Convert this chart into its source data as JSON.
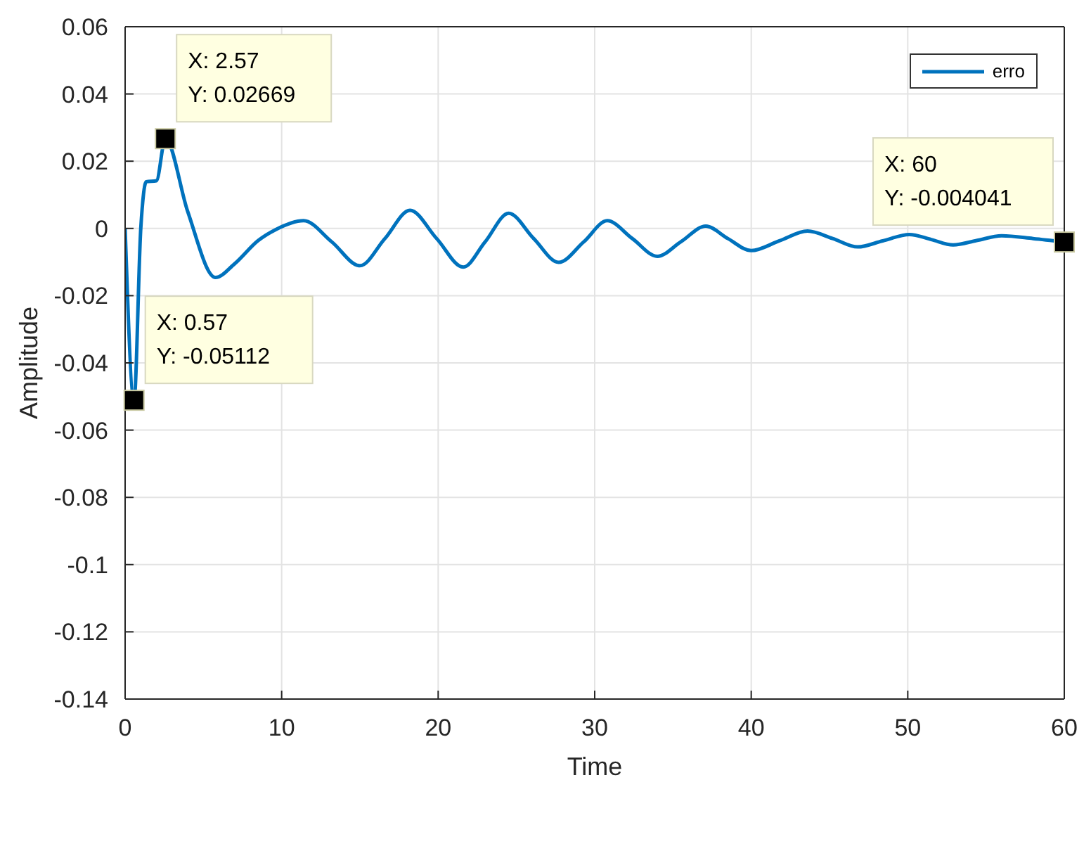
{
  "chart_data": {
    "type": "line",
    "xlabel": "Time",
    "ylabel": "Amplitude",
    "x": [
      0,
      0.57,
      1.0,
      1.35,
      2.0,
      2.57,
      4.0,
      5.77,
      7.0,
      8.5,
      9.6,
      11.4,
      13.2,
      15,
      16.6,
      18.2,
      19.9,
      21.6,
      23.0,
      24.5,
      26.1,
      27.7,
      29.3,
      30.8,
      32.4,
      34.0,
      35.5,
      37.1,
      38.5,
      40.0,
      41.8,
      43.6,
      45.2,
      46.8,
      48.4,
      50.1,
      51.5,
      52.9,
      54.4,
      56.0,
      58.0,
      60
    ],
    "series": [
      {
        "name": "erro",
        "color": "#0072bd",
        "values": [
          0,
          -0.05112,
          0.0,
          0.0139,
          0.0142,
          0.02669,
          0.005,
          -0.0146,
          -0.0105,
          -0.0036,
          -0.0004,
          0.0023,
          -0.004,
          -0.0111,
          -0.003,
          0.0054,
          -0.003,
          -0.0115,
          -0.004,
          0.0045,
          -0.003,
          -0.0101,
          -0.004,
          0.0023,
          -0.003,
          -0.0083,
          -0.004,
          0.0007,
          -0.003,
          -0.0066,
          -0.0037,
          -0.0008,
          -0.003,
          -0.0055,
          -0.0037,
          -0.0018,
          -0.0033,
          -0.0049,
          -0.0036,
          -0.0022,
          -0.003,
          -0.004041
        ]
      }
    ],
    "xlim": [
      0,
      60
    ],
    "xticks": [
      0,
      10,
      20,
      30,
      40,
      50,
      60
    ],
    "ylim": [
      -0.14,
      0.06
    ],
    "yticks": [
      -0.14,
      -0.12,
      -0.1,
      -0.08,
      -0.06,
      -0.04,
      -0.02,
      0,
      0.02,
      0.04,
      0.06
    ],
    "grid": true,
    "legend": "top right",
    "marker": "none",
    "line_style": "solid",
    "annotations": [
      {
        "text": "X: 0.57\nY: -0.05112",
        "x": 0.57,
        "y": -0.05112
      },
      {
        "text": "X: 2.57\nY: 0.02669",
        "x": 2.57,
        "y": 0.02669
      },
      {
        "text": "X: 60\nY: -0.004041",
        "x": 60,
        "y": -0.004041
      }
    ]
  }
}
